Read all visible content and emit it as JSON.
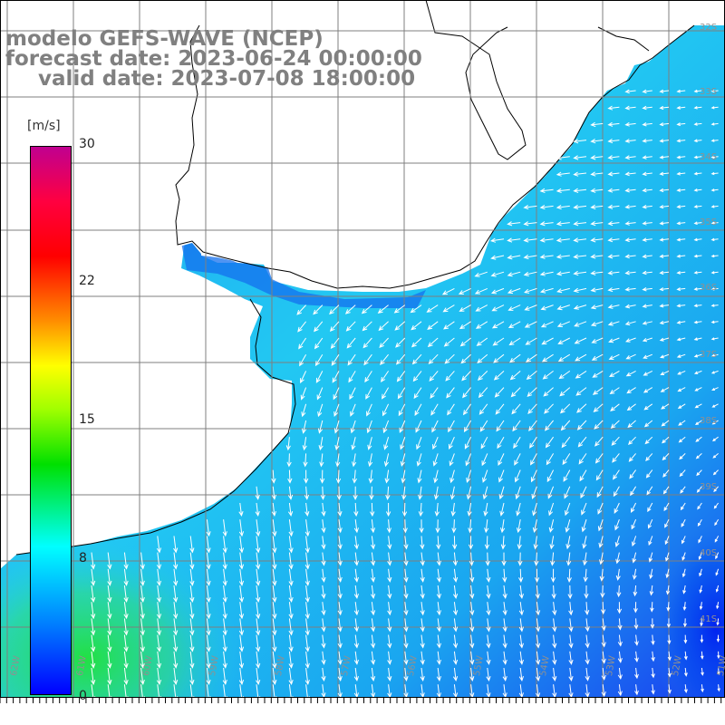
{
  "title": {
    "line1": "modelo GEFS-WAVE (NCEP)",
    "line2": "forecast date: 2023-06-24 00:00:00",
    "line3": "valid date: 2023-07-08 18:00:00"
  },
  "colorbar": {
    "unit": "[m/s]",
    "ticks": [
      {
        "label": "30",
        "value": 30
      },
      {
        "label": "22",
        "value": 22
      },
      {
        "label": "15",
        "value": 15
      },
      {
        "label": "8",
        "value": 8
      },
      {
        "label": "0",
        "value": 0
      }
    ],
    "colors": [
      "#0000ff",
      "#0080ff",
      "#00ffff",
      "#00e000",
      "#a0ff00",
      "#ffff00",
      "#ff9000",
      "#ff0000",
      "#c00090"
    ]
  },
  "lat_labels": [
    "32S",
    "33S",
    "34S",
    "35S",
    "36S",
    "37S",
    "38S",
    "39S",
    "40S",
    "41S"
  ],
  "lon_labels": [
    "62W",
    "61W",
    "60W",
    "59W",
    "58W",
    "57W",
    "56W",
    "55W",
    "54W",
    "53W",
    "52W",
    "51W"
  ],
  "map": {
    "land_color": "#ffffff",
    "coast_color": "#000000",
    "grid_color": "#7f7f7f",
    "arrow_color": "#ffffff"
  }
}
